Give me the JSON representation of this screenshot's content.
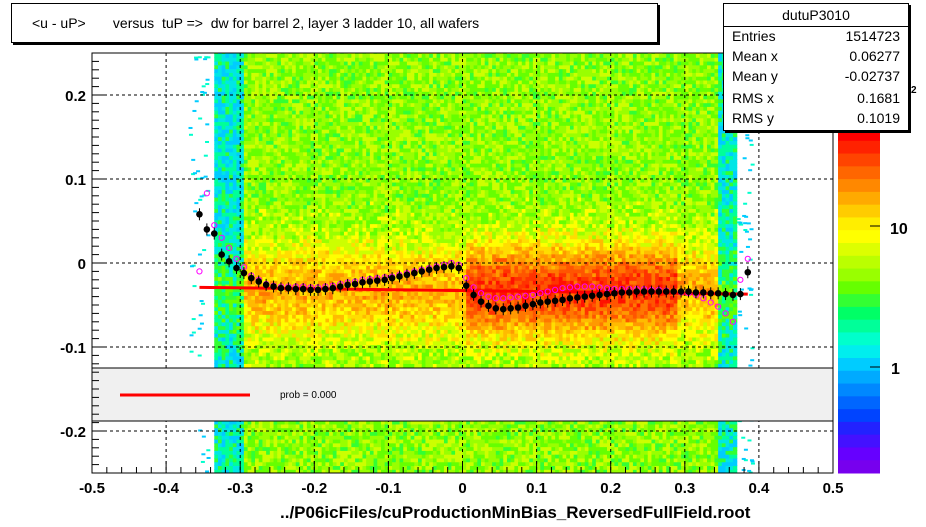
{
  "title": "<u - uP>       versus  tuP =>  dw for barrel 2, layer 3 ladder 10, all wafers",
  "stats": {
    "name": "dutuP3010",
    "rows": [
      {
        "key": "Entries",
        "value": "1514723"
      },
      {
        "key": "Mean x",
        "value": "0.06277"
      },
      {
        "key": "Mean y",
        "value": "-0.02737"
      },
      {
        "key": "RMS x",
        "value": "0.1681"
      },
      {
        "key": "RMS y",
        "value": "0.1019"
      }
    ]
  },
  "x_axis_title": "../P06icFiles/cuProductionMinBias_ReversedFullField.root",
  "legend": {
    "label": "prob = 0.000"
  },
  "colorbar": {
    "labels": [
      "1",
      "10"
    ],
    "partial_label": "2"
  },
  "chart_data": {
    "type": "scatter",
    "title": "<u - uP>       versus  tuP =>  dw for barrel 2, layer 3 ladder 10, all wafers",
    "xlabel": "../P06icFiles/cuProductionMinBias_ReversedFullField.root",
    "ylabel": "",
    "xlim": [
      -0.5,
      0.5
    ],
    "ylim": [
      -0.25,
      0.25
    ],
    "x_ticks": [
      "-0.5",
      "-0.4",
      "-0.3",
      "-0.2",
      "-0.1",
      "0",
      "0.1",
      "0.2",
      "0.3",
      "0.4",
      "0.5"
    ],
    "y_ticks": [
      "-0.2",
      "-0.1",
      "0",
      "0.1",
      "0.2"
    ],
    "grid": true,
    "colors": {
      "fit_line": "#ff0000",
      "mean_points": "#000000",
      "alt_points": "#ff00ff"
    },
    "fit_line": {
      "x": [
        -0.355,
        0.385
      ],
      "y": [
        -0.029,
        -0.037
      ]
    },
    "series": [
      {
        "marker": "filled-circle",
        "x": [
          -0.355,
          -0.345,
          -0.335,
          -0.325,
          -0.315,
          -0.305,
          -0.295,
          -0.285,
          -0.275,
          -0.265,
          -0.255,
          -0.245,
          -0.235,
          -0.225,
          -0.215,
          -0.205,
          -0.195,
          -0.185,
          -0.175,
          -0.165,
          -0.155,
          -0.145,
          -0.135,
          -0.125,
          -0.115,
          -0.105,
          -0.095,
          -0.085,
          -0.075,
          -0.065,
          -0.055,
          -0.045,
          -0.035,
          -0.025,
          -0.015,
          -0.005,
          0.005,
          0.015,
          0.025,
          0.035,
          0.045,
          0.055,
          0.065,
          0.075,
          0.085,
          0.095,
          0.105,
          0.115,
          0.125,
          0.135,
          0.145,
          0.155,
          0.165,
          0.175,
          0.185,
          0.195,
          0.205,
          0.215,
          0.225,
          0.235,
          0.245,
          0.255,
          0.265,
          0.275,
          0.285,
          0.295,
          0.305,
          0.315,
          0.325,
          0.335,
          0.345,
          0.355,
          0.365,
          0.375,
          0.385
        ],
        "y": [
          0.058,
          0.04,
          0.035,
          0.01,
          0.002,
          -0.006,
          -0.012,
          -0.018,
          -0.022,
          -0.026,
          -0.028,
          -0.03,
          -0.03,
          -0.031,
          -0.031,
          -0.032,
          -0.032,
          -0.031,
          -0.03,
          -0.028,
          -0.026,
          -0.025,
          -0.023,
          -0.022,
          -0.021,
          -0.02,
          -0.018,
          -0.016,
          -0.014,
          -0.012,
          -0.01,
          -0.008,
          -0.006,
          -0.005,
          -0.004,
          -0.006,
          -0.027,
          -0.038,
          -0.046,
          -0.051,
          -0.054,
          -0.055,
          -0.054,
          -0.053,
          -0.051,
          -0.049,
          -0.047,
          -0.046,
          -0.045,
          -0.044,
          -0.042,
          -0.041,
          -0.04,
          -0.039,
          -0.038,
          -0.037,
          -0.036,
          -0.035,
          -0.035,
          -0.034,
          -0.034,
          -0.034,
          -0.034,
          -0.034,
          -0.034,
          -0.034,
          -0.034,
          -0.035,
          -0.035,
          -0.036,
          -0.036,
          -0.037,
          -0.038,
          -0.037,
          -0.011
        ]
      },
      {
        "marker": "open-circle",
        "x": [
          -0.355,
          -0.345,
          -0.335,
          -0.325,
          -0.315,
          -0.305,
          -0.295,
          -0.285,
          -0.275,
          -0.265,
          -0.255,
          -0.245,
          -0.235,
          -0.225,
          -0.215,
          -0.205,
          -0.195,
          -0.185,
          -0.175,
          -0.165,
          -0.155,
          -0.145,
          -0.135,
          -0.125,
          -0.115,
          -0.105,
          -0.095,
          -0.085,
          -0.075,
          -0.065,
          -0.055,
          -0.045,
          -0.035,
          -0.025,
          -0.015,
          -0.005,
          0.005,
          0.015,
          0.025,
          0.035,
          0.045,
          0.055,
          0.065,
          0.075,
          0.085,
          0.095,
          0.105,
          0.115,
          0.125,
          0.135,
          0.145,
          0.155,
          0.165,
          0.175,
          0.185,
          0.195,
          0.205,
          0.215,
          0.225,
          0.235,
          0.245,
          0.255,
          0.265,
          0.275,
          0.285,
          0.295,
          0.305,
          0.315,
          0.325,
          0.335,
          0.345,
          0.355,
          0.365,
          0.375,
          0.385
        ],
        "y": [
          -0.01,
          0.083,
          0.045,
          0.03,
          0.018,
          0.005,
          -0.005,
          -0.015,
          -0.02,
          -0.025,
          -0.027,
          -0.028,
          -0.028,
          -0.028,
          -0.028,
          -0.029,
          -0.029,
          -0.028,
          -0.027,
          -0.025,
          -0.023,
          -0.022,
          -0.02,
          -0.019,
          -0.018,
          -0.017,
          -0.016,
          -0.014,
          -0.012,
          -0.01,
          -0.008,
          -0.006,
          -0.004,
          -0.002,
          0.0,
          -0.002,
          -0.018,
          -0.029,
          -0.036,
          -0.04,
          -0.042,
          -0.042,
          -0.041,
          -0.04,
          -0.039,
          -0.038,
          -0.036,
          -0.034,
          -0.032,
          -0.03,
          -0.029,
          -0.028,
          -0.028,
          -0.028,
          -0.029,
          -0.03,
          -0.031,
          -0.031,
          -0.031,
          -0.031,
          -0.031,
          -0.032,
          -0.032,
          -0.033,
          -0.034,
          -0.035,
          -0.036,
          -0.038,
          -0.042,
          -0.047,
          -0.052,
          -0.06,
          -0.07,
          -0.02,
          0.005
        ]
      }
    ]
  }
}
